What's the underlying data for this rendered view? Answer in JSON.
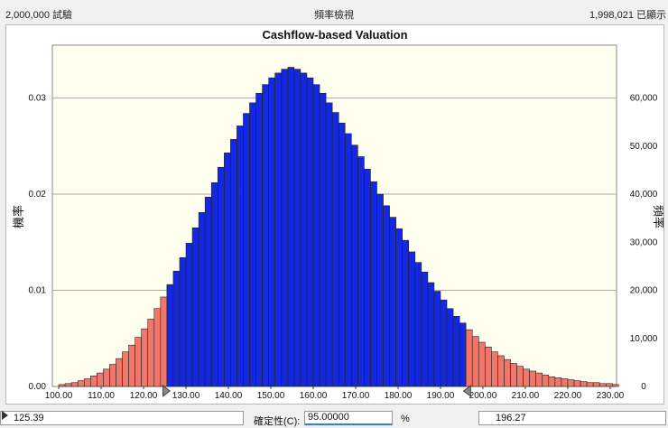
{
  "topbar": {
    "trials": "2,000,000 試驗",
    "view_name": "頻率檢視",
    "shown": "1,998,021 已顯示"
  },
  "chart_data": {
    "type": "bar",
    "title": "Cashflow-based Valuation",
    "ylabel_left": "機率",
    "ylabel_right": "頻率",
    "xlim": [
      98.5,
      231.5
    ],
    "ylim_left": [
      0,
      0.0355
    ],
    "ylim_right": [
      0,
      71000
    ],
    "x_ticks": [
      "100.00",
      "110.00",
      "120.00",
      "130.00",
      "140.00",
      "150.00",
      "160.00",
      "170.00",
      "180.00",
      "190.00",
      "200.00",
      "210.00",
      "220.00",
      "230.00"
    ],
    "left_ticks": [
      "0.00",
      "0.01",
      "0.02",
      "0.03"
    ],
    "right_ticks": [
      "0",
      "10,000",
      "20,000",
      "30,000",
      "40,000",
      "50,000",
      "60,000"
    ],
    "grid": "horizontal",
    "bin_start": 100.0,
    "bin_width": 1.5,
    "certainty_range": [
      125.39,
      196.27
    ],
    "colors": {
      "inside": "#1428e0",
      "outside": "#f0776a",
      "plot_bg": "#fffff0"
    },
    "probabilities": [
      0.0002,
      0.0003,
      0.0004,
      0.0006,
      0.0008,
      0.0011,
      0.0014,
      0.0018,
      0.0023,
      0.0029,
      0.0036,
      0.0043,
      0.0051,
      0.006,
      0.007,
      0.0081,
      0.0093,
      0.0106,
      0.012,
      0.0134,
      0.0149,
      0.0165,
      0.0181,
      0.0197,
      0.0212,
      0.0228,
      0.0243,
      0.0257,
      0.0271,
      0.0284,
      0.0295,
      0.0305,
      0.0314,
      0.0321,
      0.0326,
      0.033,
      0.0332,
      0.033,
      0.0326,
      0.0321,
      0.0314,
      0.0305,
      0.0295,
      0.0285,
      0.0274,
      0.0263,
      0.0251,
      0.0239,
      0.0226,
      0.0213,
      0.02,
      0.0188,
      0.0176,
      0.0164,
      0.0152,
      0.014,
      0.0129,
      0.0119,
      0.0108,
      0.0099,
      0.009,
      0.0081,
      0.0073,
      0.0066,
      0.0059,
      0.0052,
      0.0046,
      0.0041,
      0.0036,
      0.0032,
      0.0028,
      0.0024,
      0.0021,
      0.0018,
      0.0016,
      0.0014,
      0.0012,
      0.001,
      0.0009,
      0.0008,
      0.0007,
      0.0006,
      0.0005,
      0.0004,
      0.0004,
      0.0003,
      0.0003,
      0.0002
    ]
  },
  "bottombar": {
    "left_value": "125.39",
    "certainty_label": "確定性(C):",
    "certainty_value": "95.00000",
    "certainty_unit": "%",
    "right_value": "196.27"
  }
}
